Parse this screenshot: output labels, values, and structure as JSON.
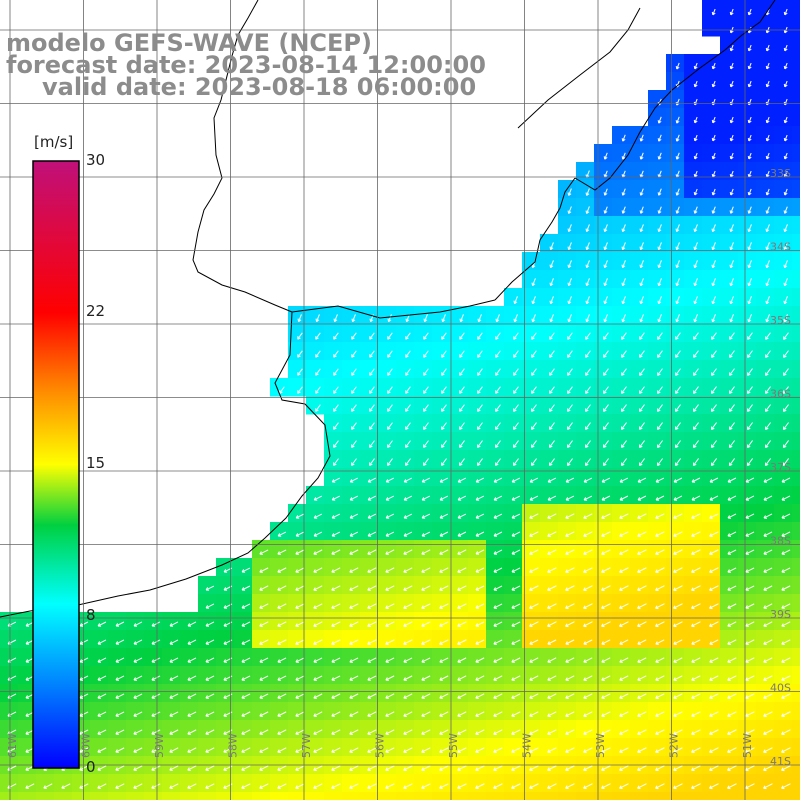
{
  "title": {
    "line1": "modelo GEFS-WAVE (NCEP)",
    "line2": "forecast date: 2023-08-14 12:00:00",
    "line3": "valid date: 2023-08-18 06:00:00"
  },
  "colorbar": {
    "unit": "[m/s]",
    "min": 0,
    "max": 30,
    "ticks": [
      30,
      22,
      15,
      8,
      0
    ]
  },
  "grid": {
    "lat_labels": [
      "33S",
      "34S",
      "35S",
      "36S",
      "37S",
      "38S",
      "39S",
      "40S",
      "41S"
    ],
    "lon_labels": [
      "61W",
      "60W",
      "59W",
      "58W",
      "57W",
      "56W",
      "55W",
      "54W",
      "53W",
      "52W",
      "51W"
    ]
  },
  "colors": {
    "land": "#ffffff",
    "coastline": "#000000",
    "gridline": "#555555",
    "arrows": "#ffffff",
    "title": "#8c8c8c"
  }
}
